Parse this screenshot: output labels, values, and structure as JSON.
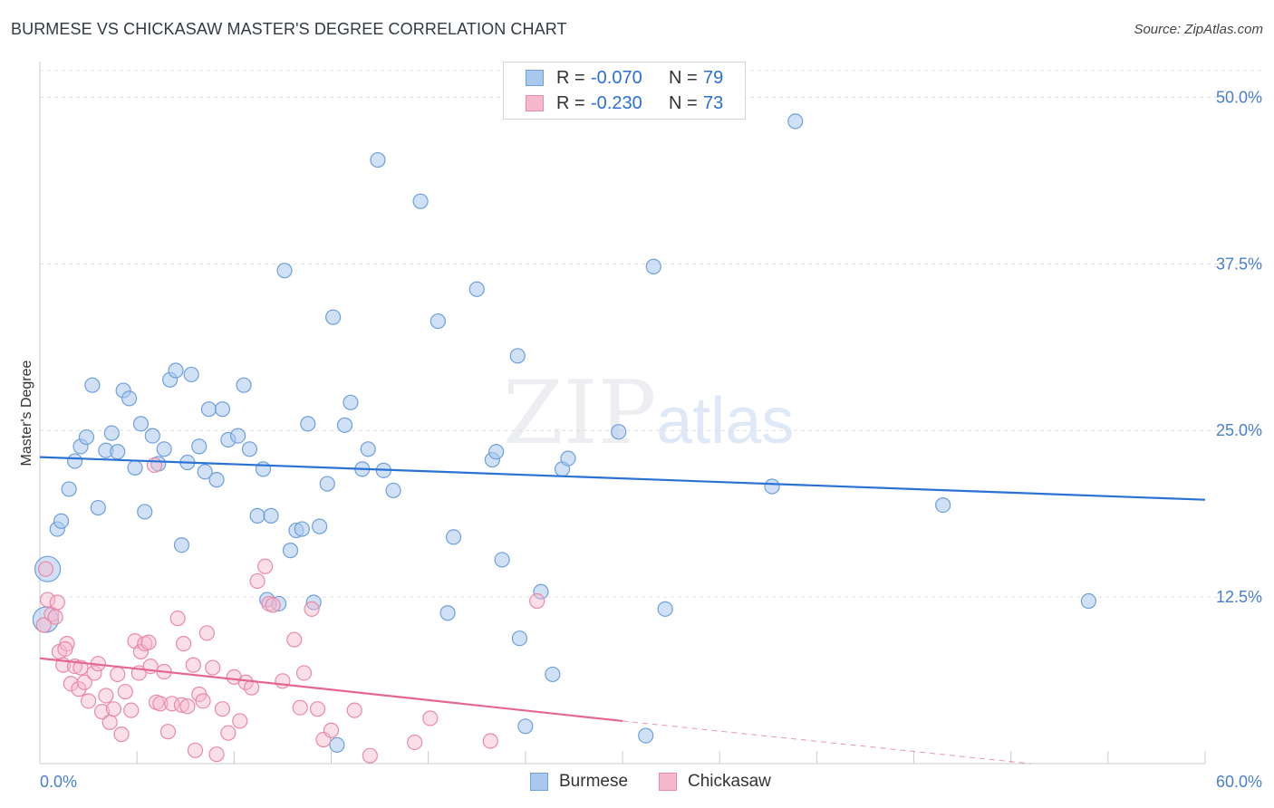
{
  "header": {
    "title": "BURMESE VS CHICKASAW MASTER'S DEGREE CORRELATION CHART",
    "source": "Source: ZipAtlas.com"
  },
  "watermark": {
    "zip": "ZIP",
    "atlas": "atlas"
  },
  "colors": {
    "burmese_fill": "#a9c8ee",
    "burmese_stroke": "#6f9fdc",
    "burmese_line": "#2a72d4",
    "chickasaw_fill": "#f6b8cb",
    "chickasaw_stroke": "#ea89a8",
    "chickasaw_line": "#e5678f",
    "tick_text": "#4a7fd0"
  },
  "legend": {
    "rows": [
      {
        "r_label": "R =",
        "r_value": "-0.070",
        "n_label": "N =",
        "n_value": "79"
      },
      {
        "r_label": "R =",
        "r_value": "-0.230",
        "n_label": "N =",
        "n_value": "73"
      }
    ]
  },
  "bottom_legend": {
    "burmese": "Burmese",
    "chickasaw": "Chickasaw"
  },
  "chart_data": {
    "type": "scatter",
    "title": "BURMESE VS CHICKASAW MASTER'S DEGREE CORRELATION CHART",
    "xlabel": "",
    "ylabel": "Master's Degree",
    "xlim": [
      0,
      60
    ],
    "ylim": [
      0,
      52
    ],
    "x_tick_labels": [
      "0.0%",
      "60.0%"
    ],
    "y_ticks": [
      12.5,
      25.0,
      37.5,
      50.0
    ],
    "y_tick_labels": [
      "12.5%",
      "25.0%",
      "37.5%",
      "50.0%"
    ],
    "grid": true,
    "series": [
      {
        "name": "Burmese",
        "r": -0.07,
        "n": 79,
        "trend": {
          "x": [
            0,
            60
          ],
          "y": [
            23.0,
            19.8
          ]
        },
        "points": [
          {
            "x": 0.4,
            "y": 14.6,
            "big": true
          },
          {
            "x": 0.3,
            "y": 10.8,
            "big": true
          },
          {
            "x": 0.9,
            "y": 17.6
          },
          {
            "x": 1.1,
            "y": 18.2
          },
          {
            "x": 1.5,
            "y": 20.6
          },
          {
            "x": 1.8,
            "y": 22.7
          },
          {
            "x": 2.1,
            "y": 23.8
          },
          {
            "x": 2.4,
            "y": 24.5
          },
          {
            "x": 2.7,
            "y": 28.4
          },
          {
            "x": 3.0,
            "y": 19.2
          },
          {
            "x": 3.4,
            "y": 23.5
          },
          {
            "x": 3.7,
            "y": 24.8
          },
          {
            "x": 4.0,
            "y": 23.4
          },
          {
            "x": 4.3,
            "y": 28.0
          },
          {
            "x": 4.6,
            "y": 27.4
          },
          {
            "x": 4.9,
            "y": 22.2
          },
          {
            "x": 5.2,
            "y": 25.5
          },
          {
            "x": 5.4,
            "y": 18.9
          },
          {
            "x": 5.8,
            "y": 24.6
          },
          {
            "x": 6.1,
            "y": 22.5
          },
          {
            "x": 6.4,
            "y": 23.6
          },
          {
            "x": 6.7,
            "y": 28.8
          },
          {
            "x": 7.0,
            "y": 29.5
          },
          {
            "x": 7.3,
            "y": 16.4
          },
          {
            "x": 7.6,
            "y": 22.6
          },
          {
            "x": 7.8,
            "y": 29.2
          },
          {
            "x": 8.2,
            "y": 23.8
          },
          {
            "x": 8.5,
            "y": 21.9
          },
          {
            "x": 8.7,
            "y": 26.6
          },
          {
            "x": 9.1,
            "y": 21.3
          },
          {
            "x": 9.4,
            "y": 26.6
          },
          {
            "x": 9.7,
            "y": 24.3
          },
          {
            "x": 10.2,
            "y": 24.6
          },
          {
            "x": 10.5,
            "y": 28.4
          },
          {
            "x": 10.8,
            "y": 23.6
          },
          {
            "x": 11.2,
            "y": 18.6
          },
          {
            "x": 11.5,
            "y": 22.1
          },
          {
            "x": 11.7,
            "y": 12.3
          },
          {
            "x": 11.9,
            "y": 18.6
          },
          {
            "x": 12.3,
            "y": 12.0
          },
          {
            "x": 12.6,
            "y": 37.0
          },
          {
            "x": 12.9,
            "y": 16.0
          },
          {
            "x": 13.2,
            "y": 17.5
          },
          {
            "x": 13.5,
            "y": 17.6
          },
          {
            "x": 13.8,
            "y": 25.5
          },
          {
            "x": 14.1,
            "y": 12.1
          },
          {
            "x": 14.4,
            "y": 17.8
          },
          {
            "x": 14.8,
            "y": 21.0
          },
          {
            "x": 15.1,
            "y": 33.5
          },
          {
            "x": 15.3,
            "y": 1.4
          },
          {
            "x": 15.7,
            "y": 25.4
          },
          {
            "x": 16.0,
            "y": 27.1
          },
          {
            "x": 16.6,
            "y": 22.1
          },
          {
            "x": 16.9,
            "y": 23.6
          },
          {
            "x": 17.4,
            "y": 45.3
          },
          {
            "x": 17.7,
            "y": 22.0
          },
          {
            "x": 18.2,
            "y": 20.5
          },
          {
            "x": 19.6,
            "y": 42.2
          },
          {
            "x": 20.5,
            "y": 33.2
          },
          {
            "x": 21.0,
            "y": 11.3
          },
          {
            "x": 21.3,
            "y": 17.0
          },
          {
            "x": 22.5,
            "y": 35.6
          },
          {
            "x": 23.3,
            "y": 22.8
          },
          {
            "x": 23.5,
            "y": 23.4
          },
          {
            "x": 23.8,
            "y": 15.3
          },
          {
            "x": 24.6,
            "y": 30.6
          },
          {
            "x": 24.7,
            "y": 9.4
          },
          {
            "x": 25.0,
            "y": 2.8
          },
          {
            "x": 25.8,
            "y": 12.9
          },
          {
            "x": 26.4,
            "y": 6.7
          },
          {
            "x": 26.9,
            "y": 22.1
          },
          {
            "x": 27.2,
            "y": 22.9
          },
          {
            "x": 29.8,
            "y": 24.9
          },
          {
            "x": 31.2,
            "y": 2.1
          },
          {
            "x": 31.6,
            "y": 37.3
          },
          {
            "x": 32.2,
            "y": 11.6
          },
          {
            "x": 37.7,
            "y": 20.8
          },
          {
            "x": 38.9,
            "y": 48.2
          },
          {
            "x": 46.5,
            "y": 19.4
          },
          {
            "x": 54.0,
            "y": 12.2
          }
        ]
      },
      {
        "name": "Chickasaw",
        "r": -0.23,
        "n": 73,
        "trend": {
          "x": [
            0,
            30
          ],
          "y": [
            7.9,
            3.2
          ],
          "dashed_to": {
            "x": 51,
            "y": 0.0
          }
        },
        "points": [
          {
            "x": 0.3,
            "y": 14.6
          },
          {
            "x": 0.4,
            "y": 12.3
          },
          {
            "x": 0.6,
            "y": 11.2
          },
          {
            "x": 0.9,
            "y": 12.1
          },
          {
            "x": 1.0,
            "y": 8.4
          },
          {
            "x": 1.2,
            "y": 7.4
          },
          {
            "x": 1.4,
            "y": 9.0
          },
          {
            "x": 1.6,
            "y": 6.0
          },
          {
            "x": 1.8,
            "y": 7.3
          },
          {
            "x": 2.0,
            "y": 5.6
          },
          {
            "x": 2.1,
            "y": 7.2
          },
          {
            "x": 2.3,
            "y": 6.1
          },
          {
            "x": 2.5,
            "y": 4.7
          },
          {
            "x": 2.8,
            "y": 6.8
          },
          {
            "x": 3.0,
            "y": 7.5
          },
          {
            "x": 3.2,
            "y": 3.9
          },
          {
            "x": 3.4,
            "y": 5.1
          },
          {
            "x": 3.6,
            "y": 3.1
          },
          {
            "x": 3.8,
            "y": 4.1
          },
          {
            "x": 4.0,
            "y": 6.7
          },
          {
            "x": 4.2,
            "y": 2.2
          },
          {
            "x": 4.4,
            "y": 5.4
          },
          {
            "x": 4.7,
            "y": 4.0
          },
          {
            "x": 4.9,
            "y": 9.2
          },
          {
            "x": 5.1,
            "y": 6.8
          },
          {
            "x": 5.2,
            "y": 8.4
          },
          {
            "x": 5.4,
            "y": 9.0
          },
          {
            "x": 5.6,
            "y": 9.1
          },
          {
            "x": 5.7,
            "y": 7.3
          },
          {
            "x": 5.9,
            "y": 22.4
          },
          {
            "x": 6.0,
            "y": 4.6
          },
          {
            "x": 6.2,
            "y": 4.5
          },
          {
            "x": 6.4,
            "y": 6.9
          },
          {
            "x": 6.6,
            "y": 2.4
          },
          {
            "x": 6.8,
            "y": 4.5
          },
          {
            "x": 7.1,
            "y": 10.9
          },
          {
            "x": 7.3,
            "y": 4.4
          },
          {
            "x": 7.4,
            "y": 9.0
          },
          {
            "x": 7.6,
            "y": 4.3
          },
          {
            "x": 7.9,
            "y": 7.4
          },
          {
            "x": 8.0,
            "y": 1.0
          },
          {
            "x": 8.2,
            "y": 5.2
          },
          {
            "x": 8.4,
            "y": 4.7
          },
          {
            "x": 8.6,
            "y": 9.8
          },
          {
            "x": 8.9,
            "y": 7.2
          },
          {
            "x": 9.1,
            "y": 0.7
          },
          {
            "x": 9.4,
            "y": 4.1
          },
          {
            "x": 9.7,
            "y": 2.3
          },
          {
            "x": 10.0,
            "y": 6.5
          },
          {
            "x": 10.3,
            "y": 3.2
          },
          {
            "x": 10.6,
            "y": 6.1
          },
          {
            "x": 10.9,
            "y": 5.7
          },
          {
            "x": 11.2,
            "y": 13.7
          },
          {
            "x": 11.6,
            "y": 14.8
          },
          {
            "x": 11.8,
            "y": 12.0
          },
          {
            "x": 12.0,
            "y": 11.9
          },
          {
            "x": 12.5,
            "y": 6.2
          },
          {
            "x": 13.1,
            "y": 9.3
          },
          {
            "x": 13.4,
            "y": 4.2
          },
          {
            "x": 13.6,
            "y": 6.8
          },
          {
            "x": 14.0,
            "y": 11.6
          },
          {
            "x": 14.3,
            "y": 4.1
          },
          {
            "x": 14.6,
            "y": 1.8
          },
          {
            "x": 15.0,
            "y": 2.5
          },
          {
            "x": 16.2,
            "y": 4.0
          },
          {
            "x": 17.0,
            "y": 0.6
          },
          {
            "x": 19.3,
            "y": 1.6
          },
          {
            "x": 20.1,
            "y": 3.4
          },
          {
            "x": 23.2,
            "y": 1.7
          },
          {
            "x": 25.6,
            "y": 12.2
          },
          {
            "x": 0.2,
            "y": 10.4
          },
          {
            "x": 0.8,
            "y": 11.0
          },
          {
            "x": 1.3,
            "y": 8.6
          }
        ]
      }
    ]
  }
}
